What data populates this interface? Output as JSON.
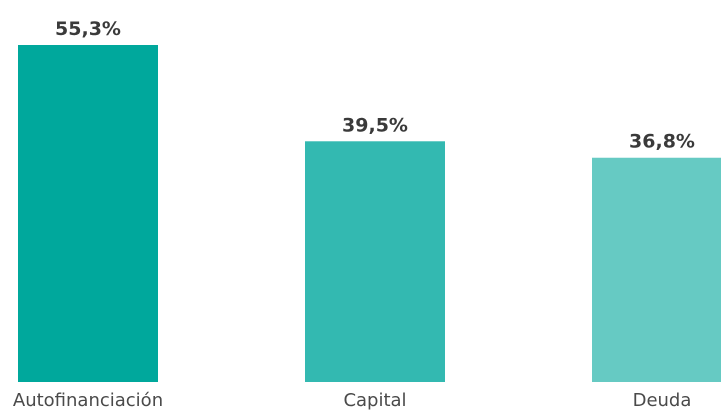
{
  "chart_data": {
    "type": "bar",
    "categories": [
      "Autofinanciación",
      "Capital",
      "Deuda"
    ],
    "values": [
      55.3,
      39.5,
      36.8
    ],
    "value_labels": [
      "55,3%",
      "39,5%",
      "36,8%"
    ],
    "colors": [
      "#00a89c",
      "#33b9b1",
      "#66cac3"
    ],
    "ylim": [
      0,
      55.3
    ],
    "grid": false,
    "legend": "none",
    "title": "",
    "xlabel": "",
    "ylabel": ""
  }
}
